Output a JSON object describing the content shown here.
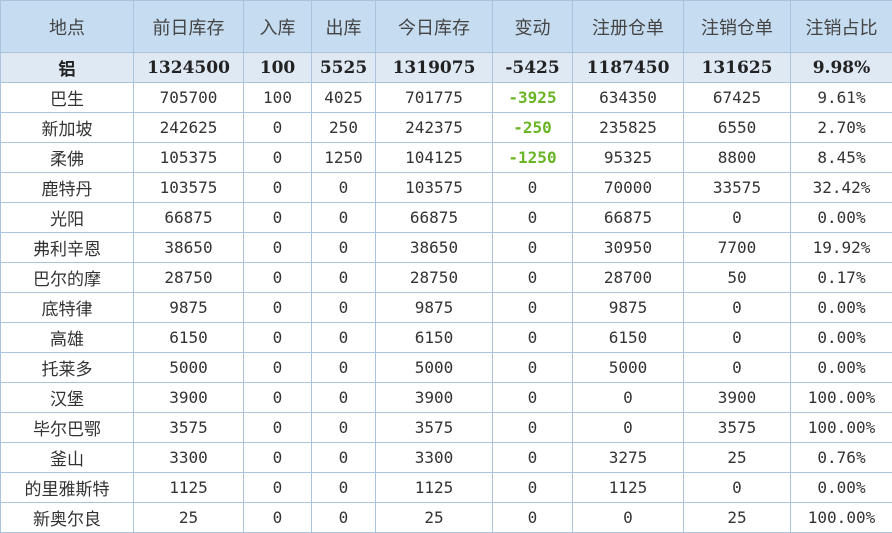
{
  "colors": {
    "header_bg": "#c6dcf1",
    "total_bg": "#dfe9f4",
    "negative": "#6ab526",
    "border": "#aac4de"
  },
  "headers": [
    "地点",
    "前日库存",
    "入库",
    "出库",
    "今日库存",
    "变动",
    "注册仓单",
    "注销仓单",
    "注销占比"
  ],
  "rows": [
    [
      "铝",
      "1324500",
      "100",
      "5525",
      "1319075",
      "-5425",
      "1187450",
      "131625",
      "9.98%"
    ],
    [
      "巴生",
      "705700",
      "100",
      "4025",
      "701775",
      "-3925",
      "634350",
      "67425",
      "9.61%"
    ],
    [
      "新加坡",
      "242625",
      "0",
      "250",
      "242375",
      "-250",
      "235825",
      "6550",
      "2.70%"
    ],
    [
      "柔佛",
      "105375",
      "0",
      "1250",
      "104125",
      "-1250",
      "95325",
      "8800",
      "8.45%"
    ],
    [
      "鹿特丹",
      "103575",
      "0",
      "0",
      "103575",
      "0",
      "70000",
      "33575",
      "32.42%"
    ],
    [
      "光阳",
      "66875",
      "0",
      "0",
      "66875",
      "0",
      "66875",
      "0",
      "0.00%"
    ],
    [
      "弗利辛恩",
      "38650",
      "0",
      "0",
      "38650",
      "0",
      "30950",
      "7700",
      "19.92%"
    ],
    [
      "巴尔的摩",
      "28750",
      "0",
      "0",
      "28750",
      "0",
      "28700",
      "50",
      "0.17%"
    ],
    [
      "底特律",
      "9875",
      "0",
      "0",
      "9875",
      "0",
      "9875",
      "0",
      "0.00%"
    ],
    [
      "高雄",
      "6150",
      "0",
      "0",
      "6150",
      "0",
      "6150",
      "0",
      "0.00%"
    ],
    [
      "托莱多",
      "5000",
      "0",
      "0",
      "5000",
      "0",
      "5000",
      "0",
      "0.00%"
    ],
    [
      "汉堡",
      "3900",
      "0",
      "0",
      "3900",
      "0",
      "0",
      "3900",
      "100.00%"
    ],
    [
      "毕尔巴鄂",
      "3575",
      "0",
      "0",
      "3575",
      "0",
      "0",
      "3575",
      "100.00%"
    ],
    [
      "釜山",
      "3300",
      "0",
      "0",
      "3300",
      "0",
      "3275",
      "25",
      "0.76%"
    ],
    [
      "的里雅斯特",
      "1125",
      "0",
      "0",
      "1125",
      "0",
      "1125",
      "0",
      "0.00%"
    ],
    [
      "新奥尔良",
      "25",
      "0",
      "0",
      "25",
      "0",
      "0",
      "25",
      "100.00%"
    ]
  ]
}
